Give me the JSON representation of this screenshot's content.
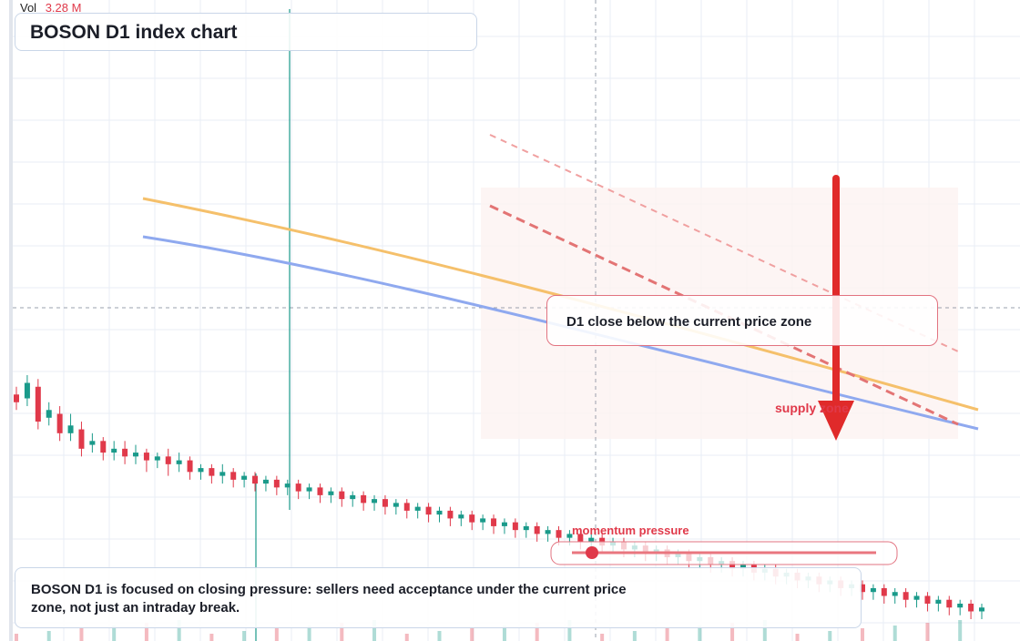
{
  "header": {
    "vol_label": "Vol",
    "vol_value": "3.28 M"
  },
  "title": "BOSON D1 index chart",
  "callout": "D1 close below the current price zone",
  "supply_label": "supply zone",
  "momentum_label": "momentum pressure",
  "note": "BOSON D1 is focused on closing pressure: sellers need acceptance under the current price zone, not just an intraday break.",
  "colors": {
    "up": "#1a9a8a",
    "down": "#e0394a",
    "ma_fast": "#f5c06b",
    "ma_slow": "#8fa9ef",
    "arrow": "#e02a2a",
    "grid": "#e9eef5"
  },
  "chart_data": {
    "type": "candlestick",
    "series": "BOSON D1",
    "note": "prices are unlabeled in the screenshot; candle shape traced as a relative index (higher = higher price)",
    "candles_ohlc": [
      [
        62,
        60,
        58,
        64
      ],
      [
        61,
        65,
        59,
        67
      ],
      [
        64,
        55,
        53,
        66
      ],
      [
        56,
        58,
        54,
        60
      ],
      [
        57,
        52,
        50,
        59
      ],
      [
        52,
        54,
        50,
        57
      ],
      [
        53,
        48,
        46,
        55
      ],
      [
        49,
        50,
        47,
        52
      ],
      [
        50,
        47,
        45,
        51
      ],
      [
        47,
        48,
        45,
        50
      ],
      [
        48,
        46,
        44,
        50
      ],
      [
        46,
        47,
        44,
        49
      ],
      [
        47,
        45,
        42,
        48
      ],
      [
        45,
        46,
        43,
        47
      ],
      [
        46,
        44,
        41,
        48
      ],
      [
        44,
        45,
        42,
        47
      ],
      [
        45,
        42,
        40,
        46
      ],
      [
        42,
        43,
        40,
        44
      ],
      [
        43,
        41,
        39,
        44
      ],
      [
        41,
        42,
        39,
        44
      ],
      [
        42,
        40,
        38,
        43
      ],
      [
        40,
        41,
        38,
        42
      ],
      [
        41,
        39,
        37,
        42
      ],
      [
        39,
        40,
        37,
        41
      ],
      [
        40,
        38,
        36,
        41
      ],
      [
        38,
        39,
        36,
        40
      ],
      [
        39,
        37,
        35,
        40
      ],
      [
        37,
        38,
        35,
        39
      ],
      [
        38,
        36,
        34,
        39
      ],
      [
        36,
        37,
        34,
        38
      ],
      [
        37,
        35,
        33,
        38
      ],
      [
        35,
        36,
        33,
        37
      ],
      [
        36,
        34,
        32,
        37
      ],
      [
        34,
        35,
        32,
        36
      ],
      [
        35,
        33,
        31,
        36
      ],
      [
        33,
        34,
        31,
        35
      ],
      [
        34,
        32,
        30,
        35
      ],
      [
        32,
        33,
        30,
        34
      ],
      [
        33,
        31,
        29,
        34
      ],
      [
        31,
        32,
        29,
        33
      ],
      [
        32,
        30,
        28,
        33
      ],
      [
        30,
        31,
        28,
        32
      ],
      [
        31,
        29,
        27,
        32
      ],
      [
        29,
        30,
        27,
        31
      ],
      [
        30,
        28,
        26,
        31
      ],
      [
        28,
        29,
        26,
        30
      ],
      [
        29,
        27,
        25,
        30
      ],
      [
        27,
        28,
        25,
        29
      ],
      [
        28,
        26,
        24,
        29
      ],
      [
        26,
        27,
        24,
        28
      ],
      [
        27,
        25,
        23,
        28
      ],
      [
        25,
        26,
        23,
        27
      ],
      [
        26,
        24,
        22,
        27
      ],
      [
        24,
        25,
        22,
        26
      ],
      [
        25,
        23,
        21,
        26
      ],
      [
        23,
        24,
        21,
        25
      ],
      [
        24,
        22,
        20,
        25
      ],
      [
        22,
        23,
        20,
        24
      ],
      [
        23,
        21,
        19,
        24
      ],
      [
        21,
        22,
        19,
        23
      ],
      [
        22,
        20,
        18,
        23
      ],
      [
        20,
        21,
        18,
        22
      ],
      [
        21,
        19,
        17,
        22
      ],
      [
        19,
        20,
        17,
        21
      ],
      [
        20,
        18,
        16,
        21
      ],
      [
        18,
        19,
        16,
        20
      ],
      [
        19,
        17,
        15,
        20
      ],
      [
        17,
        18,
        15,
        19
      ],
      [
        18,
        16,
        14,
        19
      ],
      [
        16,
        17,
        14,
        18
      ],
      [
        17,
        15,
        13,
        18
      ],
      [
        15,
        16,
        13,
        17
      ],
      [
        16,
        14,
        12,
        17
      ],
      [
        14,
        15,
        12,
        16
      ],
      [
        15,
        13,
        11,
        16
      ],
      [
        13,
        14,
        11,
        15
      ],
      [
        14,
        12,
        10,
        15
      ],
      [
        12,
        13,
        10,
        14
      ],
      [
        13,
        11,
        9,
        14
      ],
      [
        11,
        12,
        9,
        13
      ],
      [
        12,
        10,
        8,
        13
      ],
      [
        10,
        11,
        8,
        12
      ],
      [
        11,
        9,
        7,
        12
      ],
      [
        9,
        10,
        7,
        11
      ],
      [
        10,
        8,
        6,
        11
      ],
      [
        8,
        9,
        6,
        10
      ],
      [
        9,
        7,
        5,
        10
      ],
      [
        7,
        8,
        5,
        9
      ],
      [
        8,
        6,
        4,
        9
      ],
      [
        6,
        7,
        4,
        8
      ]
    ]
  }
}
